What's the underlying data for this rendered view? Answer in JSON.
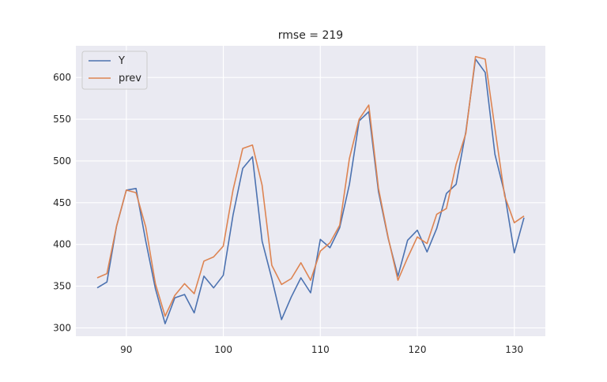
{
  "chart_data": {
    "type": "line",
    "title": "rmse = 219",
    "xlabel": "",
    "ylabel": "",
    "xlim": [
      84.8,
      133.2
    ],
    "ylim": [
      290,
      638
    ],
    "xticks": [
      90,
      100,
      110,
      120,
      130
    ],
    "yticks": [
      300,
      350,
      400,
      450,
      500,
      550,
      600
    ],
    "grid": true,
    "legend_position": "top-left",
    "x": [
      87,
      88,
      89,
      90,
      91,
      92,
      93,
      94,
      95,
      96,
      97,
      98,
      99,
      100,
      101,
      102,
      103,
      104,
      105,
      106,
      107,
      108,
      109,
      110,
      111,
      112,
      113,
      114,
      115,
      116,
      117,
      118,
      119,
      120,
      121,
      122,
      123,
      124,
      125,
      126,
      127,
      128,
      129,
      130,
      131
    ],
    "series": [
      {
        "name": "Y",
        "color": "#4c72b0",
        "values": [
          348,
          355,
          422,
          465,
          467,
          404,
          347,
          305,
          336,
          340,
          318,
          362,
          348,
          363,
          435,
          491,
          505,
          404,
          359,
          310,
          337,
          360,
          342,
          406,
          396,
          420,
          472,
          548,
          559,
          463,
          407,
          362,
          405,
          417,
          391,
          419,
          461,
          472,
          535,
          622,
          606,
          508,
          461,
          390,
          432
        ]
      },
      {
        "name": "prev",
        "color": "#dd8452",
        "values": [
          360,
          365,
          422,
          465,
          462,
          421,
          353,
          314,
          339,
          353,
          341,
          380,
          385,
          398,
          465,
          515,
          519,
          471,
          375,
          352,
          359,
          378,
          357,
          392,
          402,
          423,
          503,
          550,
          567,
          467,
          408,
          357,
          384,
          409,
          401,
          436,
          443,
          496,
          533,
          625,
          622,
          539,
          458,
          426,
          434
        ]
      }
    ]
  }
}
